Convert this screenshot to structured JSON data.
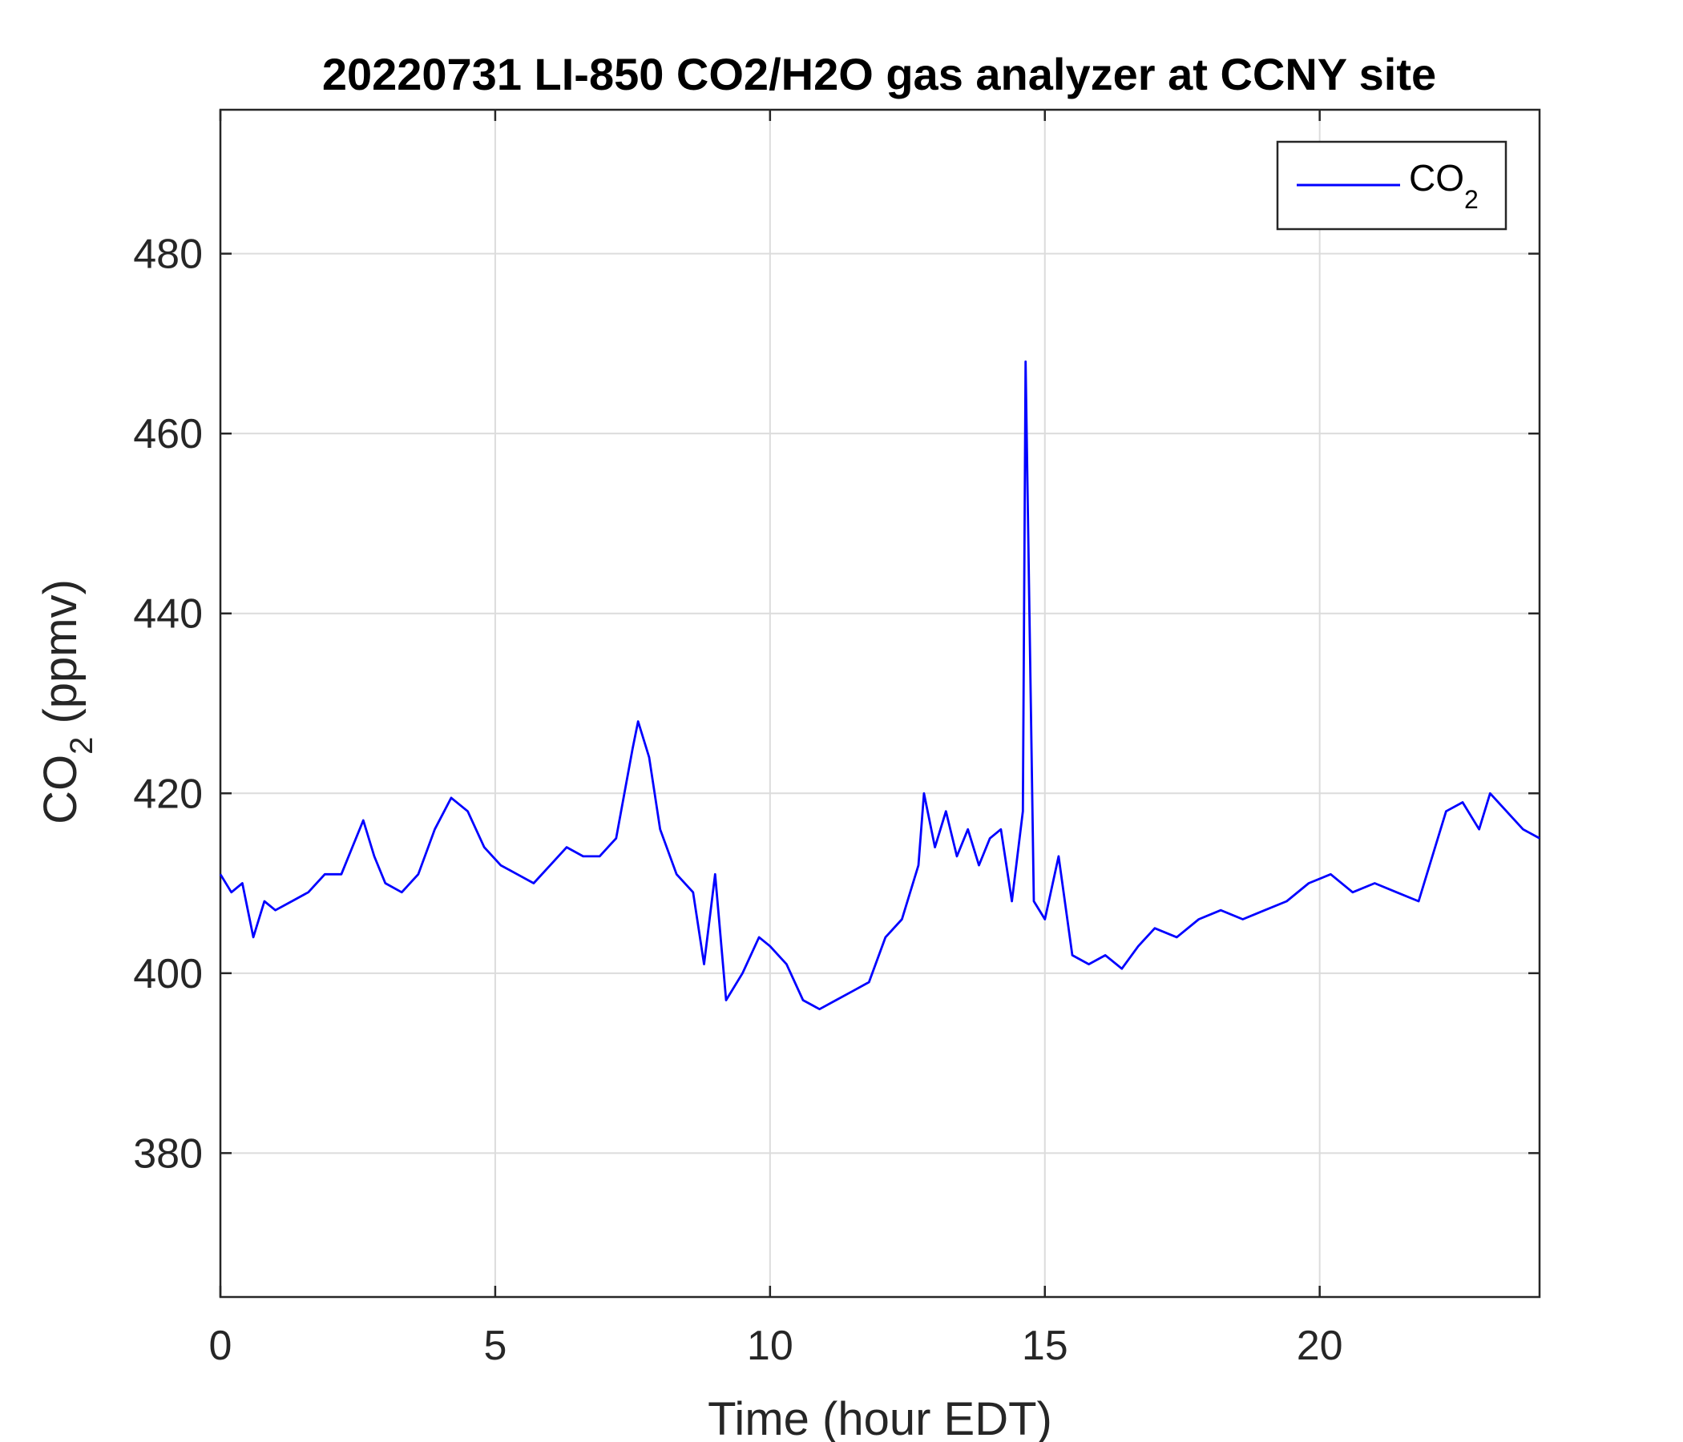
{
  "chart_data": {
    "type": "line",
    "title": "20220731 LI-850 CO2/H2O gas analyzer at CCNY site",
    "xlabel": "Time (hour EDT)",
    "ylabel": {
      "base": "CO",
      "sub": "2",
      "rest": " (ppmv)"
    },
    "xlim": [
      0,
      24
    ],
    "ylim": [
      364,
      496
    ],
    "xticks": [
      0,
      5,
      10,
      15,
      20
    ],
    "yticks": [
      380,
      400,
      420,
      440,
      460,
      480
    ],
    "grid": true,
    "legend": {
      "position": "top-right",
      "label_base": "CO",
      "label_sub": "2"
    },
    "color": "#0000ff",
    "series": [
      {
        "name": "CO2",
        "x": [
          0,
          0.2,
          0.4,
          0.6,
          0.8,
          1.0,
          1.3,
          1.6,
          1.9,
          2.2,
          2.4,
          2.6,
          2.8,
          3.0,
          3.3,
          3.6,
          3.9,
          4.2,
          4.5,
          4.8,
          5.1,
          5.4,
          5.7,
          6.0,
          6.3,
          6.6,
          6.9,
          7.2,
          7.5,
          7.6,
          7.8,
          8.0,
          8.3,
          8.6,
          8.8,
          9.0,
          9.2,
          9.5,
          9.8,
          10.0,
          10.3,
          10.6,
          10.9,
          11.2,
          11.5,
          11.8,
          12.1,
          12.4,
          12.7,
          12.8,
          13.0,
          13.2,
          13.4,
          13.6,
          13.8,
          14.0,
          14.2,
          14.4,
          14.6,
          14.65,
          14.8,
          15.0,
          15.25,
          15.5,
          15.8,
          16.1,
          16.4,
          16.7,
          17.0,
          17.4,
          17.8,
          18.2,
          18.6,
          19.0,
          19.4,
          19.8,
          20.2,
          20.6,
          21.0,
          21.4,
          21.8,
          22.0,
          22.3,
          22.6,
          22.9,
          23.1,
          23.4,
          23.7,
          24.0
        ],
        "y": [
          411,
          409,
          410,
          404,
          408,
          407,
          408,
          409,
          411,
          411,
          414,
          417,
          413,
          410,
          409,
          411,
          416,
          419.5,
          418,
          414,
          412,
          411,
          410,
          412,
          414,
          413,
          413,
          415,
          425,
          428,
          424,
          416,
          411,
          409,
          401,
          411,
          397,
          400,
          404,
          403,
          401,
          397,
          396,
          397,
          398,
          399,
          404,
          406,
          412,
          420,
          414,
          418,
          413,
          416,
          412,
          415,
          416,
          408,
          418,
          468,
          408,
          406,
          413,
          402,
          401,
          402,
          400.5,
          403,
          405,
          404,
          406,
          407,
          406,
          407,
          408,
          410,
          411,
          409,
          410,
          409,
          408,
          412,
          418,
          419,
          416,
          420,
          418,
          416,
          415
        ]
      }
    ]
  }
}
